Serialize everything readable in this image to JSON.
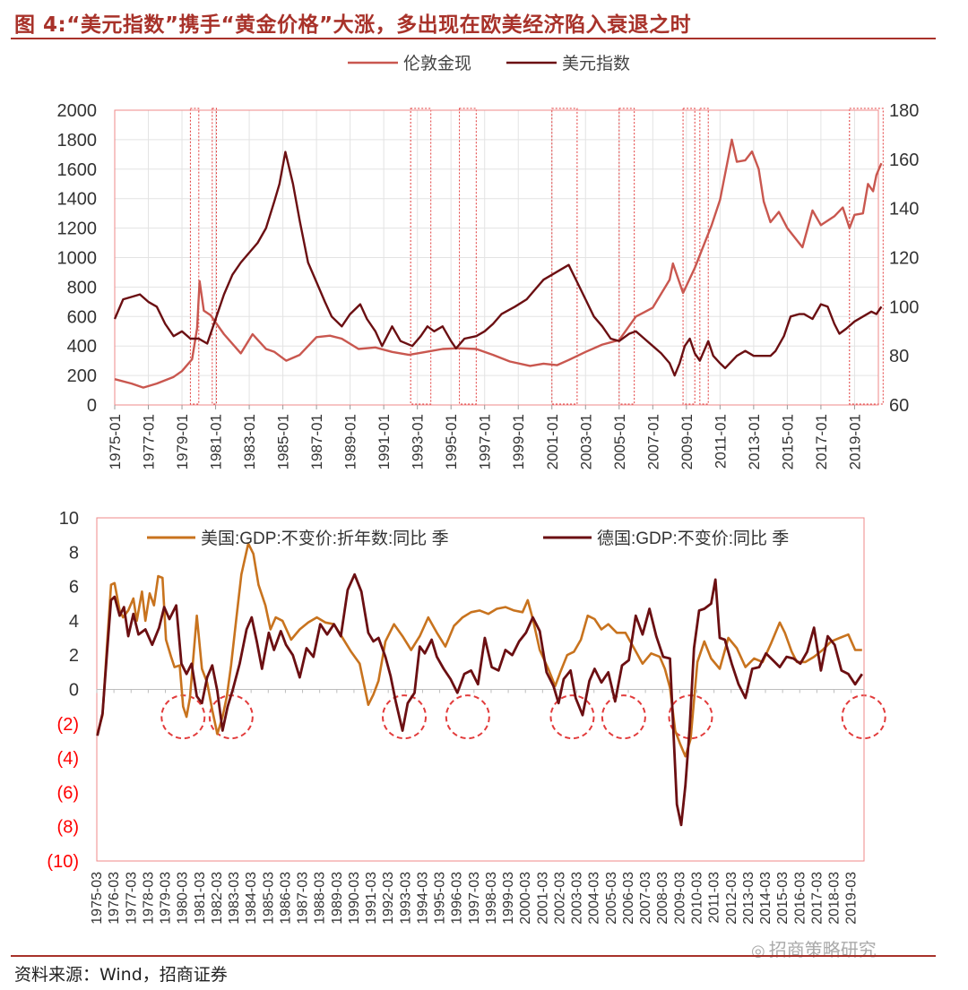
{
  "title": "图 4:“美元指数”携手“黄金价格”大涨，多出现在欧美经济陷入衰退之时",
  "source": "资料来源：Wind，招商证券",
  "watermark": "招商策略研究",
  "colors": {
    "title": "#a8322a",
    "gold": "#c9574f",
    "dollar": "#6b0f12",
    "us_gdp": "#c8731e",
    "de_gdp": "#6b0f12",
    "highlight": "#e23b3b",
    "negative_tick": "#ff0000"
  },
  "chart_data": [
    {
      "type": "line",
      "legend": "top-center",
      "grid": true,
      "x_start": "1975-01",
      "x_end": "2020-06",
      "x_tick_labels": [
        "1975-01",
        "1977-01",
        "1979-01",
        "1981-01",
        "1983-01",
        "1985-01",
        "1987-01",
        "1989-01",
        "1991-01",
        "1993-01",
        "1995-01",
        "1997-01",
        "1999-01",
        "2001-01",
        "2003-01",
        "2005-01",
        "2007-01",
        "2009-01",
        "2011-01",
        "2013-01",
        "2015-01",
        "2017-01",
        "2019-01"
      ],
      "y_left": {
        "ylim": [
          0,
          2000
        ],
        "ticks": [
          0,
          200,
          400,
          600,
          800,
          1000,
          1200,
          1400,
          1600,
          1800,
          2000
        ]
      },
      "y_right": {
        "ylim": [
          60,
          180
        ],
        "ticks": [
          60,
          80,
          100,
          120,
          140,
          160,
          180
        ]
      },
      "series": [
        {
          "name": "伦敦金现",
          "axis": "left",
          "color": "#c9574f",
          "x": [
            1975.0,
            1976.0,
            1976.7,
            1977.5,
            1978.5,
            1979.0,
            1979.6,
            1979.9,
            1980.05,
            1980.3,
            1980.7,
            1981.0,
            1981.5,
            1982.5,
            1983.2,
            1984.0,
            1984.5,
            1985.2,
            1986.0,
            1987.0,
            1987.8,
            1988.5,
            1989.5,
            1990.5,
            1991.5,
            1992.5,
            1993.5,
            1994.5,
            1995.5,
            1996.5,
            1997.5,
            1998.5,
            1999.7,
            2000.5,
            2001.3,
            2002.0,
            2003.0,
            2004.0,
            2005.0,
            2006.0,
            2006.5,
            2007.0,
            2008.0,
            2008.2,
            2008.8,
            2009.5,
            2010.5,
            2011.0,
            2011.7,
            2012.0,
            2012.5,
            2012.9,
            2013.3,
            2013.6,
            2014.0,
            2014.5,
            2015.0,
            2015.9,
            2016.5,
            2017.0,
            2017.8,
            2018.3,
            2018.7,
            2019.0,
            2019.5,
            2019.8,
            2020.1,
            2020.3,
            2020.6
          ],
          "values": [
            175,
            145,
            118,
            145,
            190,
            230,
            310,
            520,
            840,
            640,
            610,
            560,
            480,
            350,
            480,
            380,
            360,
            300,
            340,
            460,
            470,
            450,
            380,
            390,
            360,
            340,
            360,
            380,
            385,
            380,
            340,
            295,
            265,
            280,
            270,
            305,
            360,
            410,
            440,
            600,
            630,
            660,
            850,
            960,
            760,
            930,
            1220,
            1390,
            1800,
            1650,
            1660,
            1720,
            1600,
            1380,
            1240,
            1310,
            1200,
            1070,
            1320,
            1220,
            1280,
            1340,
            1200,
            1290,
            1300,
            1500,
            1450,
            1560,
            1640
          ]
        },
        {
          "name": "美元指数",
          "axis": "right",
          "color": "#6b0f12",
          "x": [
            1975.0,
            1975.5,
            1976.0,
            1976.5,
            1977.0,
            1977.5,
            1978.0,
            1978.5,
            1979.0,
            1979.5,
            1980.0,
            1980.5,
            1981.0,
            1981.5,
            1982.0,
            1982.5,
            1983.0,
            1983.5,
            1984.0,
            1984.5,
            1984.8,
            1985.15,
            1985.6,
            1986.0,
            1986.5,
            1987.0,
            1987.5,
            1987.9,
            1988.5,
            1989.0,
            1989.6,
            1990.0,
            1990.5,
            1990.9,
            1991.5,
            1992.0,
            1992.7,
            1993.2,
            1993.6,
            1994.0,
            1994.5,
            1995.0,
            1995.3,
            1995.8,
            1996.5,
            1997.0,
            1997.5,
            1998.0,
            1998.8,
            1999.5,
            2000.0,
            2000.5,
            2001.0,
            2001.5,
            2002.0,
            2002.5,
            2003.0,
            2003.5,
            2004.0,
            2004.5,
            2005.0,
            2005.6,
            2006.0,
            2006.5,
            2007.0,
            2007.5,
            2008.0,
            2008.3,
            2008.6,
            2008.9,
            2009.2,
            2009.5,
            2009.8,
            2010.3,
            2010.6,
            2011.0,
            2011.3,
            2012.0,
            2012.5,
            2013.0,
            2013.5,
            2014.0,
            2014.3,
            2014.8,
            2015.2,
            2015.7,
            2016.0,
            2016.5,
            2017.0,
            2017.4,
            2017.8,
            2018.1,
            2018.5,
            2019.0,
            2019.5,
            2020.0,
            2020.3,
            2020.6
          ],
          "values": [
            95,
            103,
            104,
            105,
            102,
            100,
            93,
            88,
            90,
            87,
            87,
            85,
            95,
            105,
            113,
            118,
            122,
            126,
            132,
            143,
            150,
            163,
            150,
            135,
            118,
            110,
            102,
            96,
            92,
            97,
            101,
            95,
            90,
            84,
            92,
            86,
            84,
            88,
            92,
            90,
            92,
            86,
            83,
            87,
            88,
            90,
            93,
            97,
            100,
            103,
            107,
            111,
            113,
            115,
            117,
            110,
            103,
            96,
            92,
            87,
            86,
            89,
            90,
            87,
            84,
            81,
            77,
            72,
            77,
            84,
            87,
            81,
            78,
            86,
            80,
            77,
            75,
            80,
            82,
            80,
            80,
            80,
            82,
            88,
            96,
            97,
            97,
            95,
            101,
            100,
            93,
            89,
            91,
            94,
            96,
            98,
            97,
            100
          ]
        }
      ],
      "highlight_ranges": [
        [
          1979.5,
          1980.0
        ],
        [
          1980.8,
          1981.05
        ],
        [
          1992.6,
          1993.8
        ],
        [
          1995.5,
          1996.5
        ],
        [
          2001.0,
          2002.5
        ],
        [
          2005.0,
          2005.9
        ],
        [
          2008.8,
          2009.5
        ],
        [
          2009.8,
          2010.3
        ],
        [
          2018.7,
          2020.7
        ]
      ]
    },
    {
      "type": "line",
      "legend": "top",
      "grid": false,
      "x_start": "1975-03",
      "x_end": "2019-12",
      "x_tick_labels": [
        "1975-03",
        "1976-03",
        "1977-03",
        "1978-03",
        "1979-03",
        "1980-03",
        "1981-03",
        "1982-03",
        "1983-03",
        "1984-03",
        "1985-03",
        "1986-03",
        "1987-03",
        "1988-03",
        "1989-03",
        "1990-03",
        "1991-03",
        "1992-03",
        "1993-03",
        "1994-03",
        "1995-03",
        "1996-03",
        "1997-03",
        "1998-03",
        "1999-03",
        "2000-03",
        "2001-03",
        "2002-03",
        "2003-03",
        "2004-03",
        "2005-03",
        "2006-03",
        "2007-03",
        "2008-03",
        "2009-03",
        "2010-03",
        "2011-03",
        "2012-03",
        "2013-03",
        "2014-03",
        "2015-03",
        "2016-03",
        "2017-03",
        "2018-03",
        "2019-03"
      ],
      "ylim": [
        -10,
        10
      ],
      "y_tick_labels": [
        "(10)",
        "(8)",
        "(6)",
        "(4)",
        "(2)",
        "0",
        "2",
        "4",
        "6",
        "8",
        "10"
      ],
      "y_tick_values": [
        -10,
        -8,
        -6,
        -4,
        -2,
        0,
        2,
        4,
        6,
        8,
        10
      ],
      "series": [
        {
          "name": "美国:GDP:不变价:折年数:同比 季",
          "color": "#c8731e",
          "x": [
            1975.2,
            1975.5,
            1975.75,
            1976.0,
            1976.2,
            1976.5,
            1976.7,
            1977.0,
            1977.3,
            1977.5,
            1977.8,
            1978.0,
            1978.25,
            1978.5,
            1978.75,
            1979.0,
            1979.2,
            1979.5,
            1979.7,
            1980.0,
            1980.2,
            1980.4,
            1980.6,
            1981.0,
            1981.3,
            1981.6,
            1981.9,
            1982.2,
            1982.5,
            1982.75,
            1983.0,
            1983.3,
            1983.6,
            1984.0,
            1984.3,
            1984.6,
            1985.0,
            1985.3,
            1985.6,
            1986.0,
            1986.5,
            1987.0,
            1987.5,
            1988.0,
            1988.5,
            1989.0,
            1989.5,
            1990.0,
            1990.5,
            1991.0,
            1991.3,
            1991.6,
            1992.0,
            1992.5,
            1993.0,
            1993.5,
            1994.0,
            1994.5,
            1995.0,
            1995.5,
            1996.0,
            1996.5,
            1997.0,
            1997.5,
            1998.0,
            1998.5,
            1999.0,
            1999.5,
            2000.0,
            2000.3,
            2000.6,
            2001.0,
            2001.5,
            2001.9,
            2002.2,
            2002.6,
            2003.0,
            2003.4,
            2003.8,
            2004.2,
            2004.6,
            2005.0,
            2005.5,
            2006.0,
            2006.5,
            2007.0,
            2007.5,
            2008.0,
            2008.3,
            2008.6,
            2008.9,
            2009.2,
            2009.5,
            2009.8,
            2010.2,
            2010.6,
            2011.0,
            2011.5,
            2012.0,
            2012.5,
            2013.0,
            2013.5,
            2014.0,
            2014.5,
            2015.0,
            2015.3,
            2015.7,
            2016.0,
            2016.5,
            2017.0,
            2017.5,
            2018.0,
            2018.5,
            2019.0,
            2019.4,
            2019.8
          ],
          "values": [
            -2.6,
            -1.5,
            2.4,
            6.1,
            6.2,
            4.6,
            4.2,
            4.6,
            5.3,
            4.0,
            5.7,
            4.0,
            5.6,
            4.9,
            6.6,
            6.5,
            2.9,
            1.9,
            1.3,
            1.4,
            -1.0,
            -1.6,
            -0.5,
            4.3,
            1.2,
            0.4,
            -1.2,
            -2.6,
            -1.6,
            -0.4,
            1.4,
            4.1,
            6.7,
            8.5,
            7.9,
            6.1,
            4.9,
            3.5,
            4.2,
            4.0,
            2.9,
            3.5,
            3.9,
            4.2,
            3.9,
            3.8,
            3.0,
            2.2,
            1.5,
            -0.9,
            -0.3,
            0.5,
            2.8,
            3.8,
            3.1,
            2.3,
            3.1,
            4.2,
            3.3,
            2.5,
            3.7,
            4.2,
            4.5,
            4.6,
            4.4,
            4.7,
            4.8,
            4.6,
            4.5,
            5.2,
            4.1,
            2.3,
            1.2,
            0.2,
            1.0,
            2.0,
            2.2,
            2.9,
            4.3,
            4.1,
            3.5,
            3.8,
            3.3,
            3.3,
            2.4,
            1.5,
            2.1,
            1.9,
            1.2,
            0.1,
            -2.4,
            -3.2,
            -3.9,
            -2.9,
            1.6,
            2.8,
            1.8,
            1.2,
            3.0,
            2.4,
            1.3,
            1.8,
            1.6,
            2.7,
            3.9,
            3.3,
            2.2,
            1.6,
            1.6,
            1.9,
            2.3,
            2.8,
            3.0,
            3.2,
            2.3,
            2.3
          ]
        },
        {
          "name": "德国:GDP:不变价:同比 季",
          "color": "#6b0f12",
          "x": [
            1975.2,
            1975.5,
            1975.75,
            1976.0,
            1976.2,
            1976.5,
            1976.75,
            1977.0,
            1977.3,
            1977.6,
            1978.0,
            1978.4,
            1978.8,
            1979.1,
            1979.4,
            1979.8,
            1980.1,
            1980.4,
            1980.7,
            1981.0,
            1981.3,
            1981.6,
            1981.9,
            1982.2,
            1982.5,
            1982.8,
            1983.1,
            1983.5,
            1983.9,
            1984.2,
            1984.5,
            1984.8,
            1985.2,
            1985.5,
            1985.9,
            1986.2,
            1986.6,
            1987.0,
            1987.4,
            1987.8,
            1988.2,
            1988.6,
            1989.0,
            1989.4,
            1989.8,
            1990.2,
            1990.6,
            1991.0,
            1991.3,
            1991.6,
            1992.0,
            1992.3,
            1992.6,
            1993.0,
            1993.3,
            1993.7,
            1994.0,
            1994.3,
            1994.7,
            1995.0,
            1995.4,
            1995.8,
            1996.2,
            1996.6,
            1997.0,
            1997.4,
            1997.8,
            1998.2,
            1998.6,
            1999.0,
            1999.4,
            1999.8,
            2000.2,
            2000.6,
            2001.0,
            2001.4,
            2001.8,
            2002.1,
            2002.4,
            2002.8,
            2003.1,
            2003.5,
            2003.9,
            2004.2,
            2004.6,
            2005.0,
            2005.4,
            2005.8,
            2006.2,
            2006.6,
            2007.0,
            2007.4,
            2007.8,
            2008.2,
            2008.6,
            2009.0,
            2009.25,
            2009.5,
            2009.75,
            2010.0,
            2010.3,
            2010.6,
            2011.0,
            2011.25,
            2011.5,
            2011.8,
            2012.2,
            2012.6,
            2013.0,
            2013.4,
            2013.8,
            2014.2,
            2014.6,
            2015.0,
            2015.4,
            2015.8,
            2016.2,
            2016.6,
            2017.0,
            2017.4,
            2017.8,
            2018.2,
            2018.6,
            2019.0,
            2019.4,
            2019.8
          ],
          "values": [
            -2.7,
            -1.4,
            2.0,
            5.2,
            5.4,
            4.3,
            4.8,
            3.1,
            4.4,
            3.2,
            3.5,
            2.6,
            3.6,
            4.8,
            4.1,
            4.9,
            1.5,
            0.9,
            1.5,
            -0.4,
            -0.8,
            0.7,
            1.4,
            -0.1,
            -2.4,
            -1.0,
            0.0,
            1.5,
            3.5,
            4.2,
            2.8,
            1.2,
            3.3,
            2.3,
            3.4,
            2.6,
            2.0,
            0.7,
            2.4,
            1.9,
            3.8,
            3.2,
            3.8,
            3.1,
            5.8,
            6.7,
            5.7,
            3.3,
            2.8,
            3.0,
            1.9,
            0.8,
            -0.7,
            -2.4,
            -0.8,
            -0.2,
            2.5,
            2.1,
            2.9,
            1.9,
            1.2,
            0.6,
            -0.2,
            0.9,
            1.1,
            0.3,
            3.0,
            1.3,
            1.1,
            2.3,
            2.0,
            2.8,
            3.3,
            4.2,
            3.4,
            1.0,
            0.2,
            -0.8,
            0.6,
            1.1,
            -0.5,
            -1.5,
            0.5,
            1.2,
            0.4,
            1.0,
            -0.7,
            1.4,
            1.7,
            4.3,
            3.2,
            4.7,
            3.1,
            1.9,
            1.8,
            -6.7,
            -7.9,
            -5.6,
            -2.2,
            2.4,
            4.6,
            4.7,
            5.0,
            6.4,
            3.0,
            2.9,
            1.5,
            0.3,
            -0.5,
            1.2,
            1.3,
            2.1,
            1.7,
            1.3,
            1.9,
            1.8,
            1.5,
            2.2,
            3.6,
            1.1,
            3.1,
            2.6,
            1.1,
            0.9,
            0.3,
            0.9
          ]
        }
      ],
      "highlight_circles_x": [
        1980.2,
        1983.0,
        1993.1,
        1996.8,
        2002.9,
        2005.9,
        2009.8,
        2019.9
      ]
    }
  ]
}
